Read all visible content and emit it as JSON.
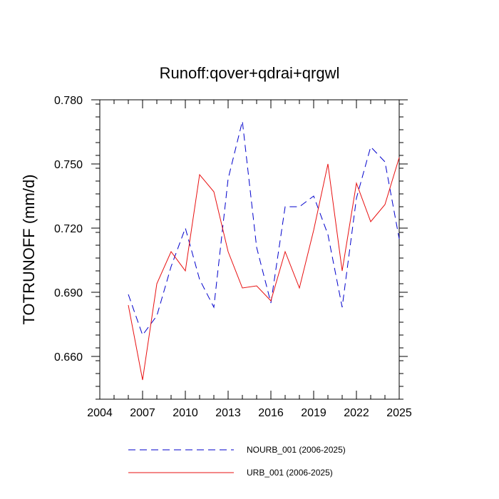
{
  "chart_data": {
    "type": "line",
    "title": "Runoff:qover+qdrai+qrgwl",
    "xlabel": "",
    "ylabel": "TOTRUNOFF  (mm/d)",
    "xlim": [
      2004,
      2025
    ],
    "ylim": [
      0.64,
      0.78
    ],
    "xticks": [
      2004,
      2007,
      2010,
      2013,
      2016,
      2019,
      2022,
      2025
    ],
    "xtick_labels": [
      "2004",
      "2007",
      "2010",
      "2013",
      "2016",
      "2019",
      "2022",
      "2025"
    ],
    "yticks": [
      0.66,
      0.69,
      0.72,
      0.75,
      0.78
    ],
    "ytick_labels": [
      "0.660",
      "0.690",
      "0.720",
      "0.750",
      "0.780"
    ],
    "grid": false,
    "legend_position": "bottom",
    "x": [
      2006,
      2007,
      2008,
      2009,
      2010,
      2011,
      2012,
      2013,
      2014,
      2015,
      2016,
      2017,
      2018,
      2019,
      2020,
      2021,
      2022,
      2023,
      2024,
      2025
    ],
    "series": [
      {
        "name": "NOURB_001 (2006-2025)",
        "color": "#0000cc",
        "style": "dashed",
        "values": [
          0.689,
          0.67,
          0.679,
          0.702,
          0.72,
          0.696,
          0.683,
          0.743,
          0.77,
          0.711,
          0.685,
          0.73,
          0.73,
          0.735,
          0.717,
          0.683,
          0.734,
          0.758,
          0.751,
          0.715
        ]
      },
      {
        "name": "URB_001 (2006-2025)",
        "color": "#e81010",
        "style": "solid",
        "values": [
          0.684,
          0.649,
          0.694,
          0.709,
          0.7,
          0.745,
          0.737,
          0.709,
          0.692,
          0.693,
          0.686,
          0.709,
          0.692,
          0.719,
          0.75,
          0.7,
          0.741,
          0.723,
          0.731,
          0.753
        ]
      }
    ]
  }
}
